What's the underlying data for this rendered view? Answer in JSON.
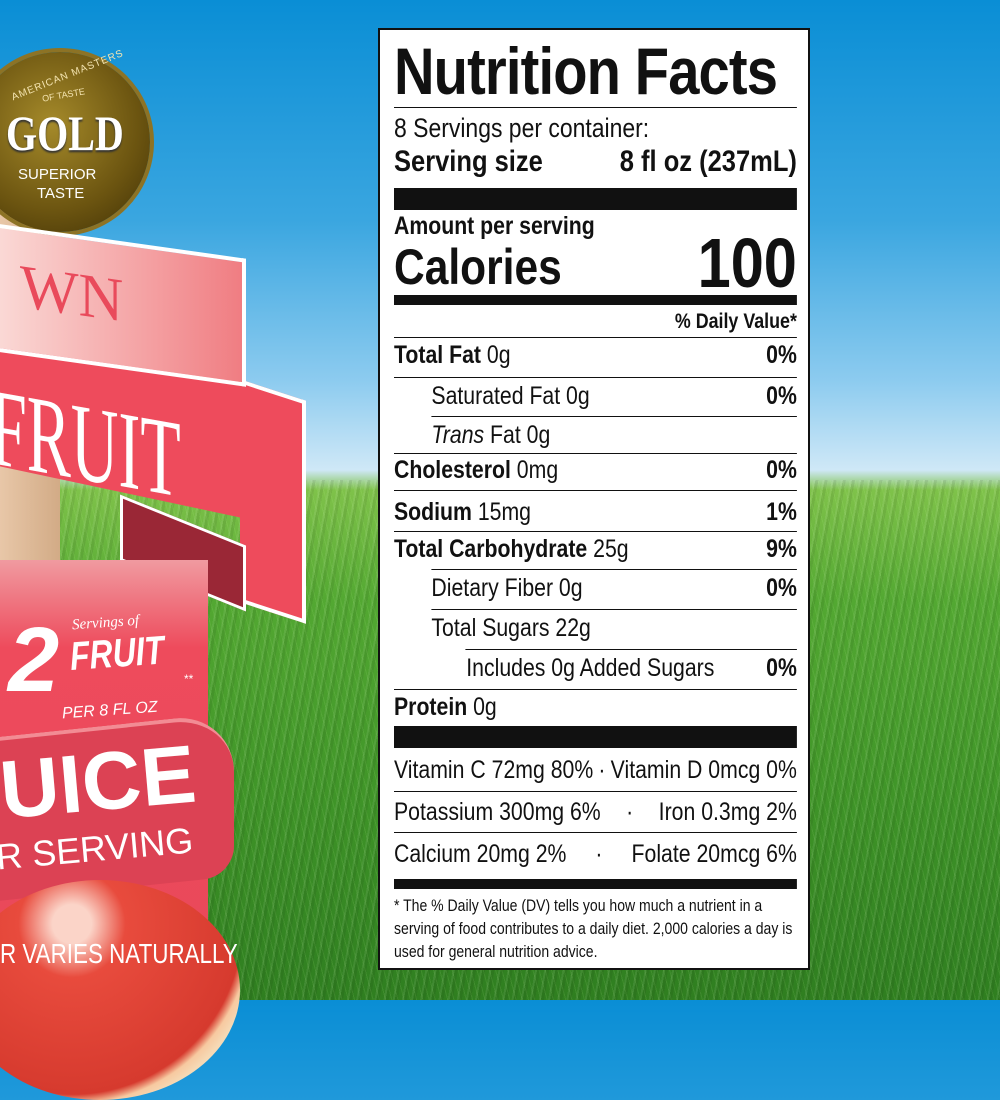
{
  "background": {
    "sky_color": "#0a8ed5",
    "grass_color": "#4a9e2e"
  },
  "label_art": {
    "medal": {
      "arc_text_1": "AMERICAN MASTERS",
      "arc_text_2": "OF TASTE",
      "title": "GOLD",
      "line1": "SUPERIOR",
      "line2": "TASTE"
    },
    "banner_top": "WN",
    "banner_main": "FRUIT",
    "servings": {
      "number": "2",
      "script": "Servings of",
      "word": "FRUIT",
      "stars": "**",
      "per": "PER 8 FL OZ"
    },
    "juice": "UICE",
    "per_serving": "R SERVING",
    "varies": "R VARIES NATURALLY",
    "accent_color": "#ee4b5c"
  },
  "nutrition": {
    "title": "Nutrition Facts",
    "servings_per_container": "8 Servings per container:",
    "serving_size_label": "Serving size",
    "serving_size_value": "8 fl oz (237mL)",
    "amount_per_serving": "Amount per serving",
    "calories_label": "Calories",
    "calories_value": "100",
    "daily_value_header": "% Daily Value*",
    "rows": [
      {
        "label": "Total Fat",
        "amount": " 0g",
        "dv": "0%"
      },
      {
        "label": "Saturated Fat 0g",
        "dv": "0%"
      },
      {
        "label_italic": "Trans",
        "label": " Fat 0g"
      },
      {
        "label": "Cholesterol",
        "amount": " 0mg",
        "dv": "0%"
      },
      {
        "label": "Sodium",
        "amount": " 15mg",
        "dv": "1%"
      },
      {
        "label": "Total Carbohydrate",
        "amount": " 25g",
        "dv": "9%"
      },
      {
        "label": "Dietary Fiber 0g",
        "dv": "0%"
      },
      {
        "label": "Total Sugars 22g"
      },
      {
        "label": "Includes 0g Added Sugars",
        "dv": "0%"
      },
      {
        "label": "Protein",
        "amount": " 0g"
      }
    ],
    "vitamins": [
      [
        "Vitamin C 72mg  80%",
        "·",
        "Vitamin D 0mcg  0%"
      ],
      [
        "Potassium  300mg  6%",
        "·",
        "Iron  0.3mg  2%"
      ],
      [
        "Calcium  20mg  2%",
        "·",
        "Folate  20mcg  6%"
      ]
    ],
    "footnote": "* The % Daily Value (DV) tells you how much a nutrient in a serving of food contributes to a daily diet. 2,000 calories a day is used for general nutrition advice."
  }
}
